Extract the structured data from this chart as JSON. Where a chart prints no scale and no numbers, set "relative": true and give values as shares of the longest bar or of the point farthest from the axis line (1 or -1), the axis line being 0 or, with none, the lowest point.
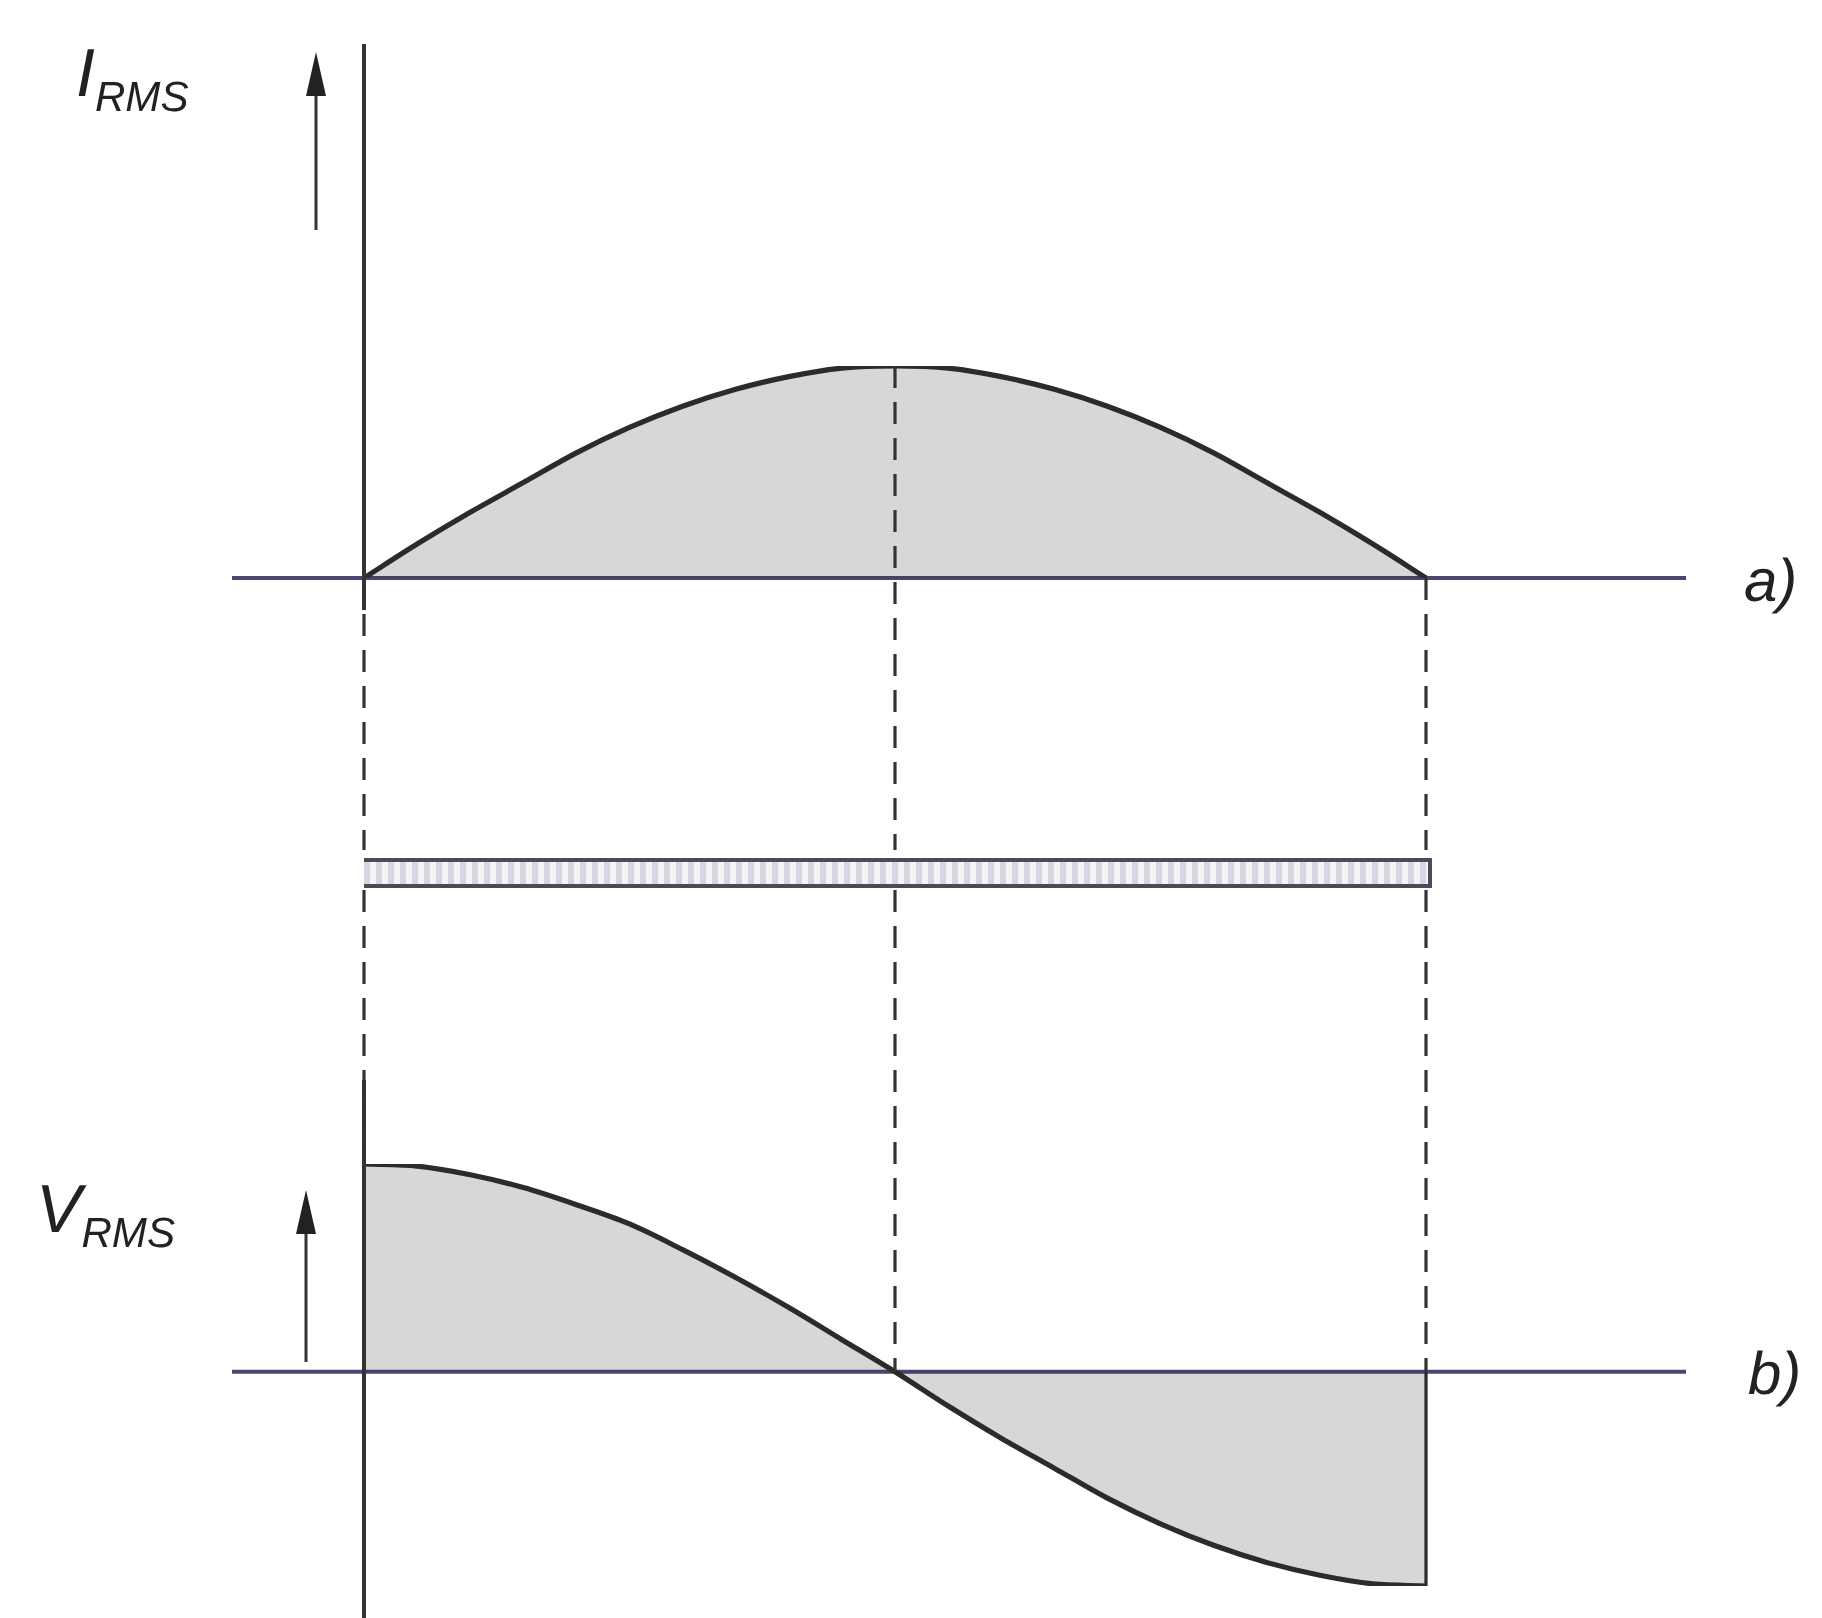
{
  "chart_data": [
    {
      "type": "area",
      "annotations": [
        "a)"
      ],
      "ylabel": "I$_{RMS}$",
      "relative": true,
      "marker": "none",
      "categories": [
        null,
        null,
        null,
        null,
        null,
        null,
        null,
        null,
        null,
        null,
        null,
        null,
        null,
        null,
        null,
        null,
        null,
        null,
        null,
        null,
        null
      ],
      "color": "#2b2b2b",
      "values": [
        0,
        0.16,
        0.31,
        0.45,
        0.59,
        0.71,
        0.81,
        0.89,
        0.95,
        0.99,
        1,
        0.99,
        0.95,
        0.89,
        0.81,
        0.71,
        0.59,
        0.45,
        0.31,
        0.16,
        0
      ],
      "ref_lines": [
        {
          "axis": "y",
          "value": 0,
          "color": "#4b4570"
        }
      ]
    },
    {
      "type": "area",
      "annotations": [
        "b)"
      ],
      "ylabel": "V$_{RMS}$",
      "relative": true,
      "marker": "none",
      "categories": [
        null,
        null,
        null,
        null,
        null,
        null,
        null,
        null,
        null,
        null,
        null,
        null,
        null,
        null,
        null,
        null,
        null,
        null,
        null,
        null,
        null
      ],
      "color": "#2b2b2b",
      "values": [
        0.97,
        0.96,
        0.92,
        0.86,
        0.78,
        0.69,
        0.57,
        0.44,
        0.3,
        0.15,
        0,
        -0.16,
        -0.31,
        -0.45,
        -0.59,
        -0.71,
        -0.81,
        -0.89,
        -0.95,
        -0.99,
        -1
      ],
      "ref_lines": [
        {
          "axis": "y",
          "value": 0,
          "color": "#4b4570"
        }
      ]
    }
  ]
}
